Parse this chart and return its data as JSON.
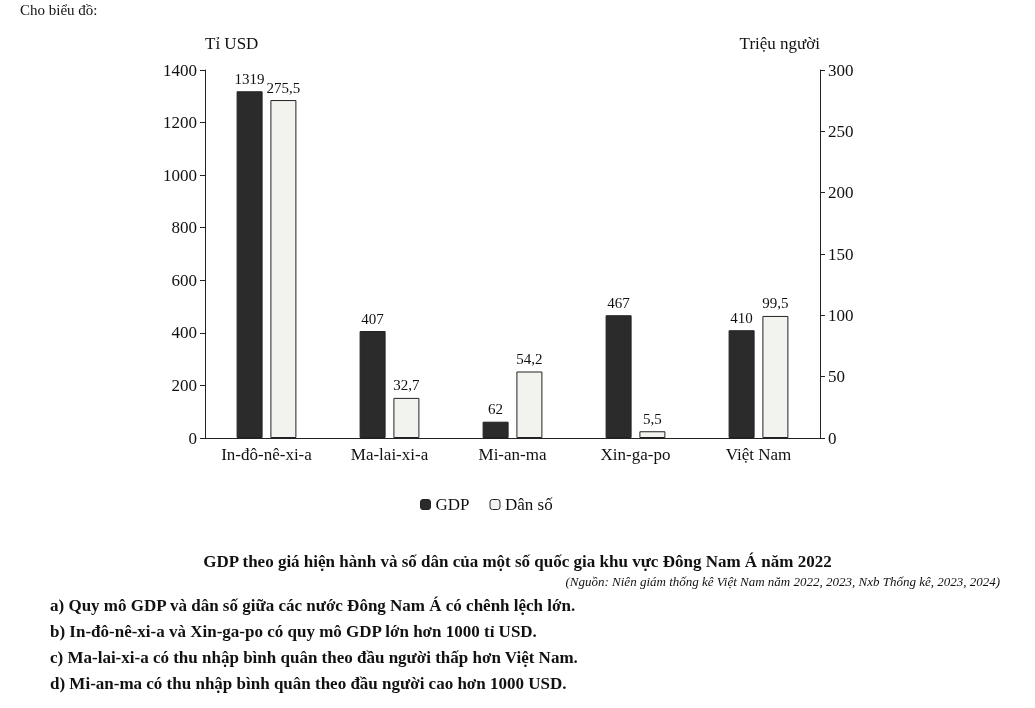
{
  "chart_data": {
    "type": "bar",
    "title": "GDP theo giá hiện hành và số dân của một số quốc gia khu vực Đông Nam Á năm 2022",
    "ylabel": "Tỉ USD",
    "y2label": "Triệu người",
    "categories": [
      "In-đô-nê-xi-a",
      "Ma-lai-xi-a",
      "Mi-an-ma",
      "Xin-ga-po",
      "Việt Nam"
    ],
    "series": [
      {
        "name": "GDP",
        "color": "#2b2b2b",
        "values": [
          1319,
          407,
          62,
          467,
          410
        ],
        "value_labels": [
          "1319",
          "407",
          "62",
          "467",
          "410"
        ]
      },
      {
        "name": "Dân số",
        "color": "#f2f2ee",
        "axis": "y2",
        "values": [
          275.5,
          32.7,
          54.2,
          5.5,
          99.5
        ],
        "value_labels": [
          "275,5",
          "32,7",
          "54,2",
          "5,5",
          "99,5"
        ]
      }
    ],
    "ylim": [
      0,
      1400
    ],
    "yticks": [
      0,
      200,
      400,
      600,
      800,
      1000,
      1200,
      1400
    ],
    "y2lim": [
      0,
      300
    ],
    "y2ticks": [
      0,
      50,
      100,
      150,
      200,
      250,
      300
    ],
    "grid": false,
    "legend": "bottom",
    "annotations": [
      "Cho biểu đồ:",
      "(Nguồn: Niên giám thống kê Việt Nam năm 2022, 2023, Nxb Thống kê, 2023, 2024)",
      "a) Quy mô GDP và dân số giữa các nước Đông Nam Á có chênh lệch lớn.",
      "b) In-đô-nê-xi-a và Xin-ga-po có quy mô GDP lớn hơn 1000 tỉ USD.",
      "c) Ma-lai-xi-a có thu nhập bình quân theo đầu người thấp hơn Việt Nam.",
      "d) Mi-an-ma có thu nhập bình quân theo đầu người cao hơn 1000 USD."
    ]
  }
}
